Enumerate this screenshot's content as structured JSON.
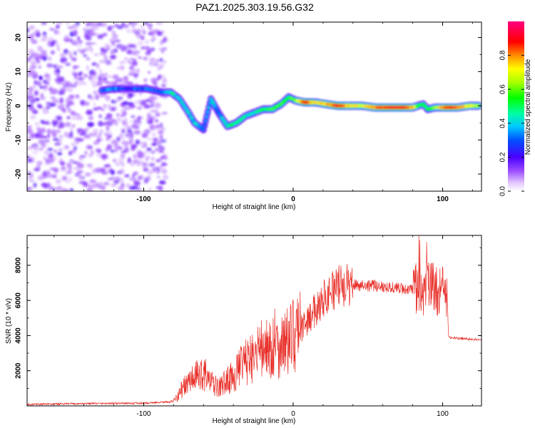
{
  "title": "PAZ1.2025.303.19.56.G32",
  "chart_data": [
    {
      "type": "heatmap",
      "title": "PAZ1.2025.303.19.56.G32",
      "xlabel": "Height of straight line (km)",
      "ylabel": "Frequency (Hz)",
      "xlim": [
        -178,
        126
      ],
      "ylim": [
        -25,
        24.5
      ],
      "xticks": [
        -100,
        0,
        100
      ],
      "xtick_labels": [
        "-100",
        "0",
        "100"
      ],
      "yticks": [
        -20,
        -10,
        0,
        10,
        20
      ],
      "ytick_labels": [
        "-20",
        "-10",
        "0",
        "10",
        "20"
      ],
      "colorbar": {
        "label": "Normalized spectral amplitude",
        "range": [
          0,
          1
        ],
        "ticks": [
          0.0,
          0.2,
          0.4,
          0.6,
          0.8
        ],
        "tick_labels": [
          "0.0",
          "0.2",
          "0.4",
          "0.6",
          "0.8"
        ]
      },
      "noise_region": {
        "x": [
          -178,
          -85
        ],
        "y": [
          -25,
          24.5
        ]
      },
      "ridge": [
        {
          "x": -128,
          "y": 4.5,
          "amp": 0.3
        },
        {
          "x": -120,
          "y": 5.0,
          "amp": 0.35
        },
        {
          "x": -113,
          "y": 5.0,
          "amp": 0.25
        },
        {
          "x": -105,
          "y": 5.0,
          "amp": 0.3
        },
        {
          "x": -98,
          "y": 5.0,
          "amp": 0.33
        },
        {
          "x": -88,
          "y": 4.0,
          "amp": 0.3
        },
        {
          "x": -82,
          "y": 4.0,
          "amp": 0.45
        },
        {
          "x": -76,
          "y": 2.0,
          "amp": 0.4
        },
        {
          "x": -70,
          "y": -2.0,
          "amp": 0.38
        },
        {
          "x": -66,
          "y": -5.0,
          "amp": 0.4
        },
        {
          "x": -60,
          "y": -7.0,
          "amp": 0.35
        },
        {
          "x": -55,
          "y": 2.0,
          "amp": 0.4
        },
        {
          "x": -50,
          "y": -2.0,
          "amp": 0.35
        },
        {
          "x": -44,
          "y": -6.0,
          "amp": 0.45
        },
        {
          "x": -38,
          "y": -5.0,
          "amp": 0.5
        },
        {
          "x": -32,
          "y": -3.0,
          "amp": 0.45
        },
        {
          "x": -26,
          "y": -2.0,
          "amp": 0.45
        },
        {
          "x": -20,
          "y": -1.0,
          "amp": 0.5
        },
        {
          "x": -14,
          "y": -1.0,
          "amp": 0.55
        },
        {
          "x": -8,
          "y": 0.5,
          "amp": 0.55
        },
        {
          "x": -3,
          "y": 2.5,
          "amp": 0.5
        },
        {
          "x": 2,
          "y": 1.5,
          "amp": 0.6
        },
        {
          "x": 8,
          "y": 1.0,
          "amp": 0.9
        },
        {
          "x": 15,
          "y": 1.0,
          "amp": 0.7
        },
        {
          "x": 22,
          "y": 0.5,
          "amp": 0.75
        },
        {
          "x": 30,
          "y": 0.0,
          "amp": 0.92
        },
        {
          "x": 38,
          "y": 0.0,
          "amp": 0.75
        },
        {
          "x": 46,
          "y": 0.0,
          "amp": 0.7
        },
        {
          "x": 55,
          "y": -0.5,
          "amp": 0.8
        },
        {
          "x": 64,
          "y": -0.5,
          "amp": 0.9
        },
        {
          "x": 72,
          "y": -0.5,
          "amp": 0.92
        },
        {
          "x": 80,
          "y": -0.5,
          "amp": 0.75
        },
        {
          "x": 87,
          "y": 0.5,
          "amp": 0.45
        },
        {
          "x": 90,
          "y": -1.0,
          "amp": 0.5
        },
        {
          "x": 95,
          "y": -0.5,
          "amp": 0.6
        },
        {
          "x": 103,
          "y": -0.5,
          "amp": 0.88
        },
        {
          "x": 110,
          "y": -0.5,
          "amp": 0.8
        },
        {
          "x": 118,
          "y": 0.0,
          "amp": 0.7
        },
        {
          "x": 124,
          "y": 0.0,
          "amp": 0.65
        }
      ]
    },
    {
      "type": "line",
      "title": "",
      "xlabel": "Height of straight line (km)",
      "ylabel": "SNR (10 * v/v)",
      "xlim": [
        -178,
        126
      ],
      "ylim": [
        0,
        9700
      ],
      "xticks": [
        -100,
        0,
        100
      ],
      "xtick_labels": [
        "-100",
        "0",
        "100"
      ],
      "yticks": [
        2000,
        4000,
        6000,
        8000
      ],
      "ytick_labels": [
        "2000",
        "4000",
        "6000",
        "8000"
      ],
      "color": "#e8302a",
      "series": [
        {
          "name": "SNR",
          "x": [
            -178,
            -140,
            -100,
            -80,
            -75,
            -68,
            -60,
            -55,
            -50,
            -45,
            -40,
            -35,
            -30,
            -25,
            -20,
            -15,
            -10,
            -5,
            0,
            5,
            10,
            15,
            20,
            25,
            30,
            40,
            50,
            60,
            70,
            80,
            85,
            88,
            90,
            92,
            95,
            100,
            103,
            104,
            110,
            120,
            126
          ],
          "y": [
            80,
            130,
            150,
            250,
            900,
            1500,
            1900,
            1300,
            1000,
            1400,
            1700,
            2200,
            2600,
            2900,
            3100,
            3300,
            3400,
            3600,
            3900,
            4300,
            4900,
            5500,
            6100,
            6500,
            6800,
            6900,
            6850,
            6800,
            6700,
            6600,
            6700,
            6900,
            7200,
            6800,
            6600,
            6500,
            6400,
            3900,
            3850,
            3800,
            3750
          ]
        }
      ]
    }
  ]
}
